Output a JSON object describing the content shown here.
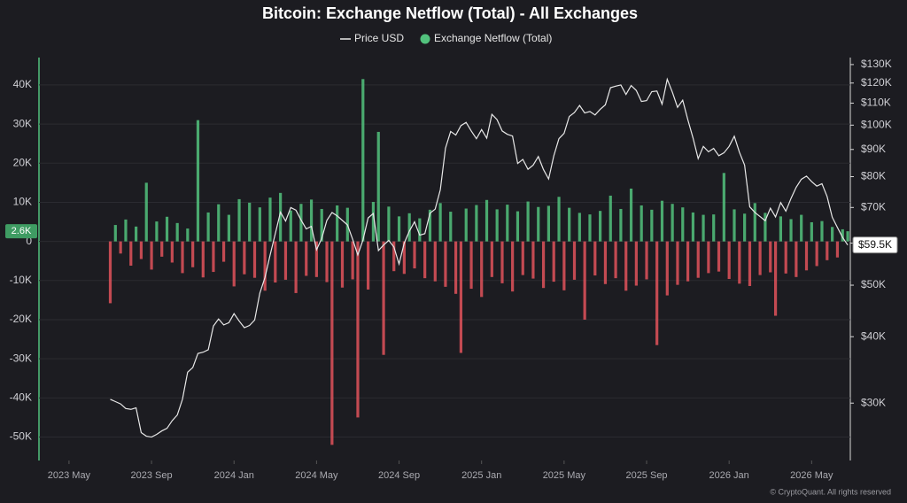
{
  "chart_data": {
    "type": "bar_line",
    "title": "Bitcoin: Exchange Netflow (Total) - All Exchanges",
    "footer": "© CryptoQuant. All rights reserved",
    "categories": [
      "2023 May",
      null,
      null,
      null,
      null,
      null,
      null,
      null,
      null,
      null,
      null,
      null,
      null,
      null,
      null,
      null,
      "2023 Sep",
      null,
      null,
      null,
      null,
      null,
      null,
      null,
      null,
      null,
      null,
      null,
      null,
      null,
      null,
      null,
      "2024 Jan",
      null,
      null,
      null,
      null,
      null,
      null,
      null,
      null,
      null,
      null,
      null,
      null,
      null,
      null,
      null,
      "2024 May",
      null,
      null,
      null,
      null,
      null,
      null,
      null,
      null,
      null,
      null,
      null,
      null,
      null,
      null,
      null,
      "2024 Sep",
      null,
      null,
      null,
      null,
      null,
      null,
      null,
      null,
      null,
      null,
      null,
      null,
      null,
      null,
      null,
      "2025 Jan",
      null,
      null,
      null,
      null,
      null,
      null,
      null,
      null,
      null,
      null,
      null,
      null,
      null,
      null,
      null,
      "2025 May",
      null,
      null,
      null,
      null,
      null,
      null,
      null,
      null,
      null,
      null,
      null,
      null,
      null,
      null,
      null,
      "2025 Sep",
      null,
      null,
      null,
      null,
      null,
      null,
      null,
      null,
      null,
      null,
      null,
      null,
      null,
      null,
      null,
      "2026 Jan",
      null,
      null,
      null,
      null,
      null,
      null,
      null,
      null,
      null,
      null,
      null,
      null,
      null,
      null,
      null,
      "2026 May",
      null,
      null,
      null,
      null,
      null,
      null,
      null
    ],
    "series": [
      {
        "name": "Price USD",
        "kind": "line",
        "axis": "y2",
        "color": "#e8e8e8",
        "current_label": "$59.5K",
        "values": [
          null,
          null,
          null,
          null,
          null,
          null,
          null,
          null,
          30500,
          30200,
          29900,
          29300,
          29200,
          29400,
          26400,
          26000,
          25900,
          26200,
          26600,
          26900,
          27800,
          28500,
          30500,
          34300,
          35000,
          37200,
          37400,
          37800,
          41900,
          43200,
          42100,
          42500,
          44200,
          42800,
          41600,
          42000,
          43000,
          48300,
          51700,
          57000,
          62500,
          68600,
          66000,
          70000,
          69200,
          66300,
          63800,
          64500,
          58300,
          61200,
          66200,
          68500,
          67500,
          66200,
          64900,
          61000,
          57000,
          60800,
          66900,
          68200,
          58100,
          59500,
          60700,
          59000,
          54800,
          60000,
          63200,
          65800,
          62100,
          62500,
          68300,
          69500,
          75600,
          90500,
          97300,
          95800,
          99800,
          101200,
          97500,
          94300,
          98100,
          94500,
          104800,
          102400,
          97500,
          96100,
          95400,
          84700,
          86200,
          82600,
          84100,
          87300,
          82500,
          79200,
          87500,
          94300,
          96500,
          103800,
          105600,
          108900,
          105400,
          106100,
          104500,
          107100,
          109200,
          117600,
          118400,
          119000,
          114200,
          118700,
          116200,
          110800,
          111200,
          115600,
          115900,
          109500,
          122000,
          115300,
          108000,
          111400,
          102300,
          94600,
          86500,
          91200,
          89100,
          90400,
          87600,
          88700,
          91200,
          95300,
          88900,
          84100,
          70200,
          68500,
          67300,
          66100,
          69800,
          67200,
          71500,
          68900,
          72800,
          76400,
          79100,
          80200,
          78300,
          76800,
          77600,
          73400,
          67100,
          64200,
          61500,
          59500
        ]
      },
      {
        "name": "Exchange Netflow (Total)",
        "kind": "bar",
        "color": "#52c27d",
        "negative_color": "#e0525a",
        "current_label": "2.6K",
        "values": [
          null,
          null,
          null,
          null,
          null,
          null,
          null,
          null,
          -15800,
          4200,
          -3100,
          5600,
          -6200,
          3800,
          -4500,
          15000,
          -7200,
          5100,
          -3900,
          6300,
          -5400,
          4700,
          -8100,
          3300,
          -6600,
          31000,
          -9200,
          7400,
          -7800,
          9500,
          -5200,
          6800,
          -11500,
          10800,
          -8400,
          9900,
          -9300,
          8700,
          -12600,
          11200,
          -10500,
          12400,
          -9800,
          7900,
          -13200,
          9600,
          -8800,
          10700,
          -9100,
          8300,
          -10400,
          -52000,
          9200,
          -11800,
          8600,
          -9700,
          -45000,
          41500,
          -12300,
          10100,
          28000,
          -29000,
          8900,
          -7600,
          6400,
          -8300,
          7200,
          -6900,
          5900,
          -9400,
          8100,
          -10200,
          9800,
          -11600,
          7600,
          -13400,
          -28500,
          8400,
          -12100,
          9300,
          -14200,
          10600,
          -9100,
          8200,
          -10700,
          9400,
          -12800,
          7700,
          -8600,
          10200,
          -9500,
          8800,
          -11900,
          9100,
          -10300,
          11400,
          -12500,
          8600,
          -9800,
          7300,
          -20000,
          6900,
          -8700,
          7800,
          -10900,
          11700,
          -9400,
          8300,
          -12600,
          13500,
          -11300,
          9200,
          -9700,
          8100,
          -26500,
          10400,
          -13800,
          9600,
          -11100,
          8700,
          -10200,
          7400,
          -9300,
          6800,
          -8100,
          6900,
          -7700,
          17500,
          -9600,
          8200,
          -10800,
          7100,
          -11400,
          9800,
          -8600,
          7300,
          -7900,
          -19000,
          6400,
          -8200,
          5700,
          -9100,
          6800,
          -7400,
          4900,
          -6300,
          5200,
          -4800,
          3700,
          -4100,
          3100,
          2600
        ]
      }
    ],
    "ylim": [
      -56000,
      47000
    ],
    "yticks": [
      {
        "value": -50000,
        "label": "-50K"
      },
      {
        "value": -40000,
        "label": "-40K"
      },
      {
        "value": -30000,
        "label": "-30K"
      },
      {
        "value": -20000,
        "label": "-20K"
      },
      {
        "value": -10000,
        "label": "-10K"
      },
      0,
      {
        "value": 10000,
        "label": "10K"
      },
      {
        "value": 20000,
        "label": "20K"
      },
      {
        "value": 30000,
        "label": "30K"
      },
      {
        "value": 40000,
        "label": "40K"
      }
    ],
    "y2lim": [
      23400,
      134000
    ],
    "y2log": true,
    "y2ticks": [
      {
        "value": 30000,
        "label": "$30K"
      },
      {
        "value": 40000,
        "label": "$40K"
      },
      {
        "value": 50000,
        "label": "$50K"
      },
      {
        "value": 60000,
        "label": "$60K"
      },
      {
        "value": 70000,
        "label": "$70K"
      },
      {
        "value": 80000,
        "label": "$80K"
      },
      {
        "value": 90000,
        "label": "$90K"
      },
      {
        "value": 100000,
        "label": "$100K"
      },
      {
        "value": 110000,
        "label": "$110K"
      },
      {
        "value": 120000,
        "label": "$120K"
      },
      {
        "value": 130000,
        "label": "$130K"
      }
    ],
    "grid": true
  }
}
